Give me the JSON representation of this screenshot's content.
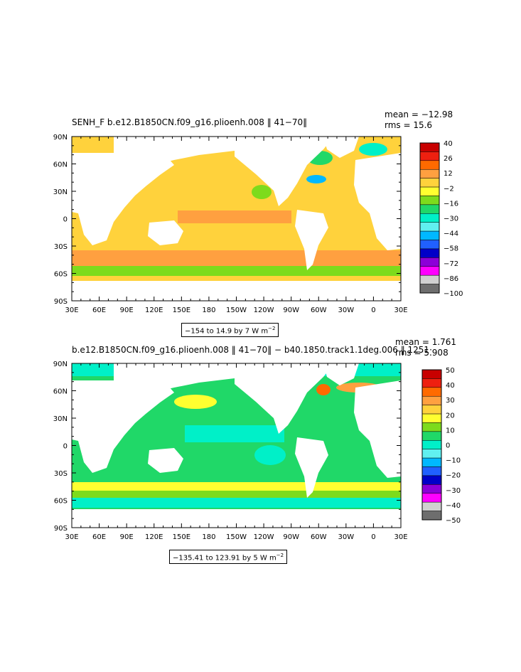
{
  "chart_data": [
    {
      "type": "heatmap",
      "title": "SENH_F b.e12.B1850CN.f09_g16.plioenh.008 ‖ 41−70‖",
      "stats": {
        "mean_label": "mean = −12.98",
        "rms_label": "rms = 15.6"
      },
      "xlabel": "",
      "ylabel": "",
      "x_tick_labels": [
        "30E",
        "60E",
        "90E",
        "120E",
        "150E",
        "180",
        "150W",
        "120W",
        "90W",
        "60W",
        "30W",
        "0",
        "30E"
      ],
      "y_tick_labels": [
        "90N",
        "60N",
        "30N",
        "0",
        "30S",
        "60S",
        "90S"
      ],
      "xlim": [
        30,
        390
      ],
      "ylim": [
        -90,
        90
      ],
      "colorbar_labels": [
        "40",
        "26",
        "12",
        "−2",
        "−16",
        "−30",
        "−44",
        "−58",
        "−72",
        "−86",
        "−100"
      ],
      "colorbar_colors": [
        "#c80000",
        "#ee2010",
        "#ff6a00",
        "#ffa040",
        "#ffd23c",
        "#ffff30",
        "#7ddb1c",
        "#20d868",
        "#00f0c8",
        "#60f0f0",
        "#00b8ff",
        "#2060ff",
        "#0000c8",
        "#8c00d8",
        "#ff00ff",
        "#d0d0d0",
        "#6e6e6e"
      ],
      "contour_info": "−154 to 14.9 by 7  W m",
      "contour_exp": "−2",
      "dominant_color": "#ffd23c"
    },
    {
      "type": "heatmap",
      "title": "b.e12.B1850CN.f09_g16.plioenh.008 ‖ 41−70‖ − b40.1850.track1.1deg.006 ‖ 1251·",
      "stats": {
        "mean_label": "mean = 1.761",
        "rms_label": "rms = 5.908"
      },
      "xlabel": "",
      "ylabel": "",
      "x_tick_labels": [
        "30E",
        "60E",
        "90E",
        "120E",
        "150E",
        "180",
        "150W",
        "120W",
        "90W",
        "60W",
        "30W",
        "0",
        "30E"
      ],
      "y_tick_labels": [
        "90N",
        "60N",
        "30N",
        "0",
        "30S",
        "60S",
        "90S"
      ],
      "xlim": [
        30,
        390
      ],
      "ylim": [
        -90,
        90
      ],
      "colorbar_labels": [
        "50",
        "40",
        "30",
        "20",
        "10",
        "0",
        "−10",
        "−20",
        "−30",
        "−40",
        "−50"
      ],
      "colorbar_colors": [
        "#c80000",
        "#ee2010",
        "#ff6a00",
        "#ffa040",
        "#ffd23c",
        "#ffff30",
        "#7ddb1c",
        "#20d868",
        "#00f0c8",
        "#60f0f0",
        "#00b8ff",
        "#2060ff",
        "#0000c8",
        "#8c00d8",
        "#ff00ff",
        "#d0d0d0",
        "#6e6e6e"
      ],
      "contour_info": "−135.41 to 123.91 by 5  W m",
      "contour_exp": "−2",
      "dominant_color": "#20d868"
    }
  ]
}
